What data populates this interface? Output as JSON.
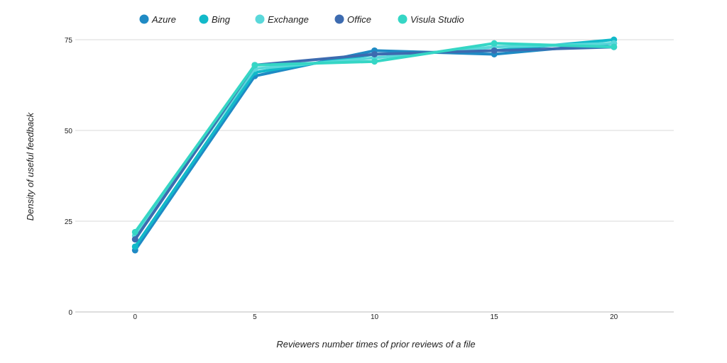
{
  "chart_data": {
    "type": "line",
    "title": "",
    "xlabel": "Reviewers number times of prior reviews of a file",
    "ylabel": "Density of useful feedback",
    "x": [
      0,
      5,
      10,
      15,
      20
    ],
    "xlim": [
      -2.5,
      22.5
    ],
    "ylim": [
      0,
      75
    ],
    "x_ticks": [
      "0",
      "5",
      "10",
      "15",
      "20"
    ],
    "y_ticks": [
      "0",
      "25",
      "50",
      "75"
    ],
    "grid": true,
    "legend_position": "top",
    "series": [
      {
        "name": "Azure",
        "color": "#1f8ac4",
        "values": [
          17,
          65,
          72,
          71,
          74
        ]
      },
      {
        "name": "Bing",
        "color": "#12b9c9",
        "values": [
          18,
          66,
          71,
          72,
          75
        ]
      },
      {
        "name": "Exchange",
        "color": "#5ad8da",
        "values": [
          21,
          67,
          70,
          73,
          74
        ]
      },
      {
        "name": "Office",
        "color": "#3d6bb0",
        "values": [
          20,
          68,
          71,
          72,
          73
        ]
      },
      {
        "name": "Visula Studio",
        "color": "#35d6c5",
        "values": [
          22,
          68,
          69,
          74,
          73
        ]
      }
    ]
  }
}
